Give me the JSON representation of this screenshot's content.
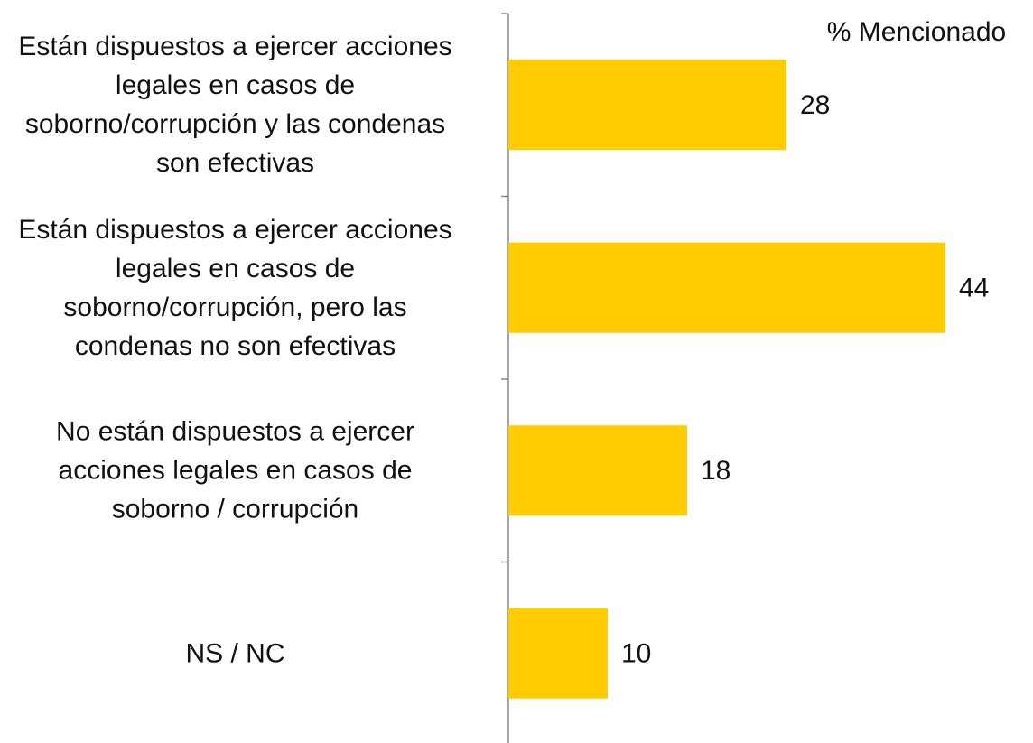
{
  "chart_data": {
    "type": "bar",
    "orientation": "horizontal",
    "annotation": "% Mencionado",
    "categories": [
      "Están dispuestos a ejercer acciones legales en casos de soborno/corrupción y las condenas son efectivas",
      "Están dispuestos a ejercer acciones legales en casos de soborno/corrupción, pero las condenas no son efectivas",
      "No están dispuestos a ejercer acciones legales en casos de soborno / corrupción",
      "NS / NC"
    ],
    "values": [
      28,
      44,
      18,
      10
    ],
    "color": "#fecc00"
  }
}
